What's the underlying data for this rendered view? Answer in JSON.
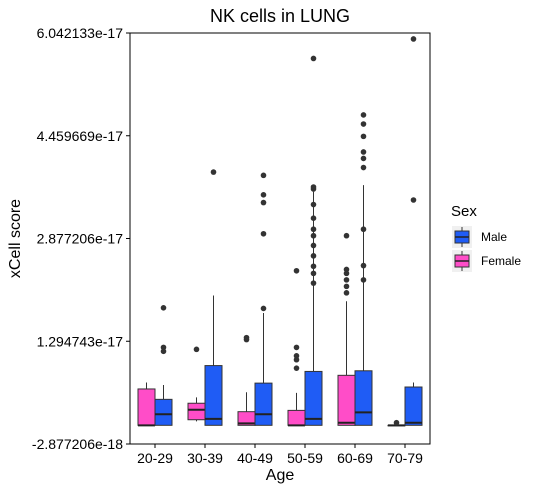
{
  "chart_data": {
    "type": "box",
    "title": "NK cells in LUNG",
    "xlabel": "Age",
    "ylabel": "xCell score",
    "categories": [
      "20-29",
      "30-39",
      "40-49",
      "50-59",
      "60-69",
      "70-79"
    ],
    "yticks": [
      "6.042133e-17",
      "4.459669e-17",
      "2.877206e-17",
      "1.294743e-17",
      "-2.877206e-18"
    ],
    "ylim": [
      -2.877206e-18,
      6.042133e-17
    ],
    "grid": false,
    "legend": {
      "title": "Sex",
      "position": "right",
      "entries": [
        {
          "label": "Male",
          "color": "#1f5cf5"
        },
        {
          "label": "Female",
          "color": "#ff4dc8"
        }
      ]
    },
    "series": [
      {
        "name": "Female",
        "color": "#ff4dc8",
        "boxes": [
          {
            "category": "20-29",
            "min": 0.0,
            "q1": 0.0,
            "median": 0.0,
            "q3": 5.6e-18,
            "max": 6.6e-18,
            "outliers": []
          },
          {
            "category": "30-39",
            "min": 6e-19,
            "q1": 8.6e-19,
            "median": 2.4e-18,
            "q3": 3.4e-18,
            "max": 4.3e-18,
            "outliers": [
              1.17e-17
            ]
          },
          {
            "category": "40-49",
            "min": 0.0,
            "q1": 0.0,
            "median": 3e-19,
            "q3": 2.1e-18,
            "max": 5.1e-18,
            "outliers": [
              1.32e-17,
              1.35e-17
            ]
          },
          {
            "category": "50-59",
            "min": 0.0,
            "q1": 0.0,
            "median": 0.0,
            "q3": 2.3e-18,
            "max": 5e-18,
            "outliers": [
              8.8e-18,
              1.01e-17,
              1.07e-17,
              1.2e-17,
              2.38e-17
            ]
          },
          {
            "category": "60-69",
            "min": 0.0,
            "q1": 0.0,
            "median": 4e-19,
            "q3": 7.7e-18,
            "max": 1.91e-17,
            "outliers": [
              2.04e-17,
              2.14e-17,
              2.24e-17,
              2.34e-17,
              2.4e-17,
              2.92e-17
            ]
          },
          {
            "category": "70-79",
            "min": 0.0,
            "q1": 0.0,
            "median": 0.0,
            "q3": 0.0,
            "max": 0.0,
            "outliers": [
              4e-19
            ]
          }
        ]
      },
      {
        "name": "Male",
        "color": "#1f5cf5",
        "boxes": [
          {
            "category": "20-29",
            "min": 0.0,
            "q1": 0.0,
            "median": 1.7e-18,
            "q3": 4e-18,
            "max": 6.2e-18,
            "outliers": [
              1.14e-17,
              1.2e-17,
              1.81e-17
            ]
          },
          {
            "category": "30-39",
            "min": 0.0,
            "q1": 0.0,
            "median": 1e-18,
            "q3": 9.2e-18,
            "max": 2e-17,
            "outliers": [
              3.9e-17
            ]
          },
          {
            "category": "40-49",
            "min": 0.0,
            "q1": 0.0,
            "median": 1.7e-18,
            "q3": 6.5e-18,
            "max": 1.73e-17,
            "outliers": [
              1.8e-17,
              2.95e-17,
              3.43e-17,
              3.55e-17,
              3.85e-17
            ]
          },
          {
            "category": "50-59",
            "min": 0.0,
            "q1": 0.0,
            "median": 1e-18,
            "q3": 8.3e-18,
            "max": 3.6e-17,
            "outliers": [
              2.19e-17,
              2.34e-17,
              2.45e-17,
              2.61e-17,
              2.77e-17,
              2.92e-17,
              3.02e-17,
              3.19e-17,
              3.4e-17,
              3.64e-17,
              3.67e-17,
              5.65e-17
            ]
          },
          {
            "category": "60-69",
            "min": 0.0,
            "q1": 0.0,
            "median": 2e-18,
            "q3": 8.4e-18,
            "max": 3.7e-17,
            "outliers": [
              2.24e-17,
              2.46e-17,
              3.02e-17,
              3.97e-17,
              4.11e-17,
              4.21e-17,
              4.45e-17,
              4.64e-17,
              4.78e-17
            ]
          },
          {
            "category": "70-79",
            "min": 0.0,
            "q1": 0.0,
            "median": 4e-19,
            "q3": 5.9e-18,
            "max": 6.6e-18,
            "outliers": [
              3.47e-17,
              5.95e-17
            ]
          }
        ]
      }
    ]
  }
}
